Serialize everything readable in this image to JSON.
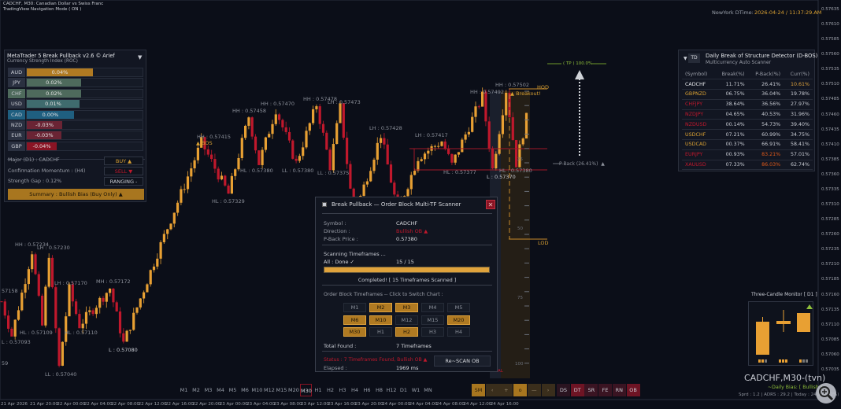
{
  "header": {
    "line1": "CADCHF, M30:  Canadian Dollar vs Swiss Franc",
    "line2": "TradingView Navigation Mode ( ON )",
    "clock_label": "NewYork DTime:",
    "clock_value": "2026-04-24 / 11:37:29.AM"
  },
  "colors": {
    "background": "#0b0e18",
    "bull": "#e8a033",
    "bear": "#c0182c",
    "accent": "#e0a33c",
    "tp": "#8fbf3a"
  },
  "price_axis": [
    "0.57635",
    "0.57610",
    "0.57585",
    "0.57560",
    "0.57535",
    "0.57510",
    "0.57485",
    "0.57460",
    "0.57435",
    "0.57410",
    "0.57385",
    "0.57360",
    "0.57335",
    "0.57310",
    "0.57285",
    "0.57260",
    "0.57235",
    "0.57210",
    "0.57185",
    "0.57160",
    "0.57135",
    "0.57110",
    "0.57085",
    "0.57060",
    "0.57035"
  ],
  "time_axis": [
    "21 Apr 2026",
    "21 Apr 20:00",
    "22 Apr 00:00",
    "22 Apr 04:00",
    "22 Apr 08:00",
    "22 Apr 12:00",
    "22 Apr 16:00",
    "22 Apr 20:00",
    "23 Apr 00:00",
    "23 Apr 04:00",
    "23 Apr 08:00",
    "23 Apr 12:00",
    "23 Apr 16:00",
    "23 Apr 20:00",
    "24 Apr 00:00",
    "24 Apr 04:00",
    "24 Apr 08:00",
    "24 Apr 12:00",
    "24 Apr 16:00"
  ],
  "chart": {
    "swing_points": [
      [
        0,
        0.5715
      ],
      [
        3,
        0.57093
      ],
      [
        9,
        0.57234
      ],
      [
        12,
        0.57109
      ],
      [
        14,
        0.5723
      ],
      [
        17,
        0.5704
      ],
      [
        20,
        0.5717
      ],
      [
        23,
        0.5711
      ],
      [
        32,
        0.57172
      ],
      [
        36,
        0.5708
      ],
      [
        46,
        0.5723
      ],
      [
        59,
        0.57415
      ],
      [
        67,
        0.57329
      ],
      [
        73,
        0.57458
      ],
      [
        76,
        0.5738
      ],
      [
        81,
        0.5747
      ],
      [
        87,
        0.5738
      ],
      [
        93,
        0.57478
      ],
      [
        97,
        0.57375
      ],
      [
        100,
        0.57473
      ],
      [
        104,
        0.5729
      ],
      [
        112,
        0.57428
      ],
      [
        117,
        0.573
      ],
      [
        123,
        0.5739
      ],
      [
        130,
        0.57417
      ],
      [
        133,
        0.57377
      ],
      [
        142,
        0.57492
      ],
      [
        145,
        0.5737
      ],
      [
        149,
        0.57502
      ],
      [
        152,
        0.5738
      ],
      [
        155,
        0.57455
      ]
    ],
    "labels": [
      "HH : 0.57234",
      "LH : 0.57230",
      "57158",
      "HL : 0.57109",
      "L : 0.57093",
      "59",
      "LL : 0.57040",
      "LH : 0.57170",
      "HL : 0.57110",
      "MH : 0.57172",
      "L : 0.57080",
      "HL : 0.57329",
      "HH : 0.57415",
      "BOS",
      "HH : 0.57458",
      "HL : 0.57380",
      "HH : 0.57470",
      "LL : 0.57380",
      "HH : 0.57478",
      "LH : 0.57473",
      "LL : 0.57375",
      "LH : 0.57428",
      "LH : 0.57417",
      "HL : 0.57377",
      "HH : 0.57492",
      "L : 0.57370",
      "HH : 0.57502",
      "HL : 0.57380",
      "Breakout!",
      "HOD",
      "LOD",
      "( TP ) 100.0%",
      "P-Back (26.41%)",
      "25",
      "50",
      "75",
      "100",
      "AL"
    ]
  },
  "strength_panel": {
    "title": "MetaTrader 5  Break Pullback v2.6 © Arief",
    "subtitle": "Currency Strength Index  (ROC)",
    "rows": [
      {
        "cur": "AUD",
        "val": "0.04%",
        "color": "#b07a22"
      },
      {
        "cur": "JPY",
        "val": "0.02%",
        "color": "#4e6a5c"
      },
      {
        "cur": "CHF",
        "val": "0.02%",
        "color": "#4e6a5c"
      },
      {
        "cur": "USD",
        "val": "0.01%",
        "color": "#3f6b6e"
      },
      {
        "cur": "CAD",
        "val": "0.00%",
        "color": "#1f5f80"
      },
      {
        "cur": "NZD",
        "val": "-0.03%",
        "color": "#6a2434"
      },
      {
        "cur": "EUR",
        "val": "-0.03%",
        "color": "#6a2434"
      },
      {
        "cur": "GBP",
        "val": "-0.04%",
        "color": "#8a1424"
      }
    ],
    "major": "Major (D1) :  CADCHF",
    "major_signal": "BUY ▲",
    "momentum": "Confirmation Momentum : (H4)",
    "momentum_signal": "SELL ▼",
    "gap": "Strength Gap :  0.12%",
    "gap_signal": "RANGING -",
    "summary": "Summary :  Bullish Bias  (Buy Only) ▲"
  },
  "dbos": {
    "collapse": "▼",
    "tag": "TD",
    "title": "Daily Break of Structure Detector (D-BOS)",
    "subtitle": "Multicurrency Auto Scanner",
    "columns": [
      "(Symbol)",
      "Break(%)",
      "P-Back(%)",
      "Curr(%)"
    ],
    "rows": [
      [
        "CADCHF",
        "11.71%",
        "26.41%",
        "10.61%"
      ],
      [
        "GBPNZD",
        "06.75%",
        "36.04%",
        "19.78%"
      ],
      [
        "CHFJPY",
        "38.64%",
        "36.56%",
        "27.97%"
      ],
      [
        "NZDJPY",
        "04.65%",
        "40.53%",
        "31.96%"
      ],
      [
        "NZDUSD",
        "00.14%",
        "54.73%",
        "39.40%"
      ],
      [
        "USDCHF",
        "07.21%",
        "60.99%",
        "34.75%"
      ],
      [
        "USDCAD",
        "00.37%",
        "66.91%",
        "58.41%"
      ],
      [
        "EURJPY",
        "00.93%",
        "83.21%",
        "57.01%"
      ],
      [
        "XAUUSD",
        "07.33%",
        "86.03%",
        "62.74%"
      ]
    ]
  },
  "scanner": {
    "title": "Break Pullback — Order Block  Multi-TF  Scanner",
    "close": "✕",
    "symbol_label": "Symbol :",
    "symbol": "CADCHF",
    "direction_label": "Direction :",
    "direction": "Bullish OB ▲",
    "pback_label": "P-Back Price :",
    "pback": "0.57380",
    "scanning": "Scanning Timeframes ...",
    "all_done": "All :  Done ✓",
    "count": "15 / 15",
    "progress": 1.0,
    "completed": "Completed! [ 15 Timeframes Scanned ]",
    "ob_title": "Order Block Timeframes -- Click to Switch Chart :",
    "timeframes": [
      {
        "tf": "M1",
        "on": false
      },
      {
        "tf": "M2",
        "on": true
      },
      {
        "tf": "M3",
        "on": true
      },
      {
        "tf": "M4",
        "on": false
      },
      {
        "tf": "M5",
        "on": false
      },
      {
        "tf": "M6",
        "on": true
      },
      {
        "tf": "M10",
        "on": true
      },
      {
        "tf": "M12",
        "on": false
      },
      {
        "tf": "M15",
        "on": false
      },
      {
        "tf": "M20",
        "on": true
      },
      {
        "tf": "M30",
        "on": true
      },
      {
        "tf": "H1",
        "on": false
      },
      {
        "tf": "H2",
        "on": true
      },
      {
        "tf": "H3",
        "on": false
      },
      {
        "tf": "H4",
        "on": false
      }
    ],
    "total_label": "Total Found :",
    "total": "7 Timeframes",
    "status": "Status :  7 Timeframes Found, Bullish OB ▲",
    "rescan": "Re~SCAN OB",
    "elapsed_label": "Elapsed :",
    "elapsed": "1969 ms"
  },
  "toolbar": {
    "timeframes": [
      "M1",
      "M2",
      "M3",
      "M4",
      "M5",
      "M6",
      "M10",
      "M12",
      "M15",
      "M20",
      "M30",
      "H1",
      "H2",
      "H3",
      "H4",
      "H6",
      "H8",
      "H12",
      "D1",
      "W1",
      "MN"
    ],
    "active": "M30",
    "nav": [
      "SM",
      "‹",
      "+",
      "o",
      "—",
      "›"
    ],
    "tools": [
      "DS",
      "DT",
      "SR",
      "FE",
      "RN",
      "OB"
    ]
  },
  "monitor": {
    "title": "Three-Candle Monitor [ D1 ]",
    "symbol": "CADCHF,M30-(tvn)",
    "bias": "~Daily Bias: [ Bullish ]",
    "stats": "Sprd : 1.2 | ADRS : 29.2 | Today : 24.9 (85.2%)"
  }
}
